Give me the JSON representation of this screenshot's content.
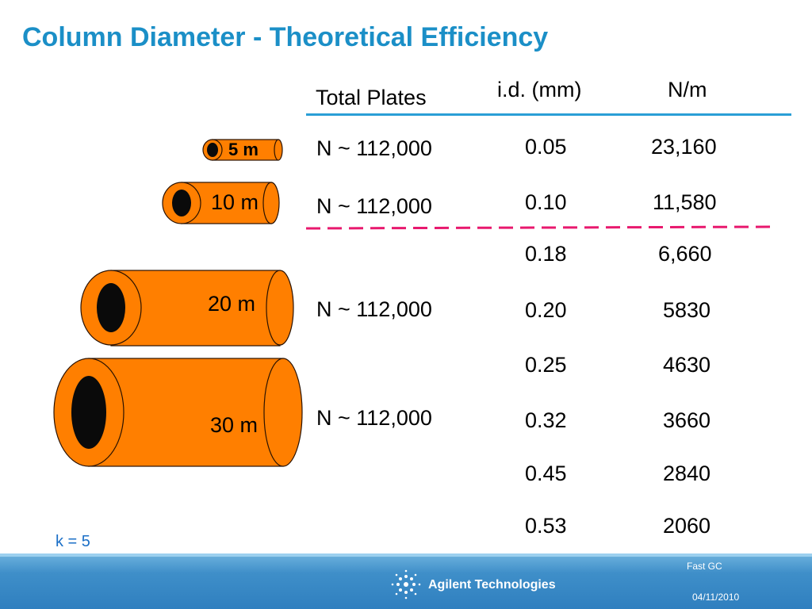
{
  "slide": {
    "title": "Column Diameter - Theoretical Efficiency",
    "headers": {
      "total_plates": "Total Plates",
      "id_mm": "i.d. (mm)",
      "n_per_m": "N/m"
    },
    "rows": [
      {
        "id": "0.05",
        "npm": "23,160"
      },
      {
        "id": "0.10",
        "npm": "11,580"
      },
      {
        "id": "0.18",
        "npm": "6,660"
      },
      {
        "id": "0.20",
        "npm": "5830"
      },
      {
        "id": "0.25",
        "npm": "4630"
      },
      {
        "id": "0.32",
        "npm": "3660"
      },
      {
        "id": "0.45",
        "npm": "2840"
      },
      {
        "id": "0.53",
        "npm": "2060"
      }
    ],
    "plates": [
      "N ~ 112,000",
      "N ~ 112,000",
      "N ~ 112,000",
      "N ~ 112,000"
    ],
    "columns": [
      {
        "label": "5 m"
      },
      {
        "label": "10 m"
      },
      {
        "label": "20 m"
      },
      {
        "label": "30 m"
      }
    ],
    "k_note": "k = 5",
    "colors": {
      "title": "#1b8fc7",
      "column_fill": "#ff7f00",
      "divider": "#e8196e",
      "header_rule": "#2a9fd6"
    }
  },
  "footer": {
    "brand": "Agilent Technologies",
    "logo_icon": "agilent-spark-icon",
    "topic": "Fast GC",
    "date": "04/11/2010"
  }
}
